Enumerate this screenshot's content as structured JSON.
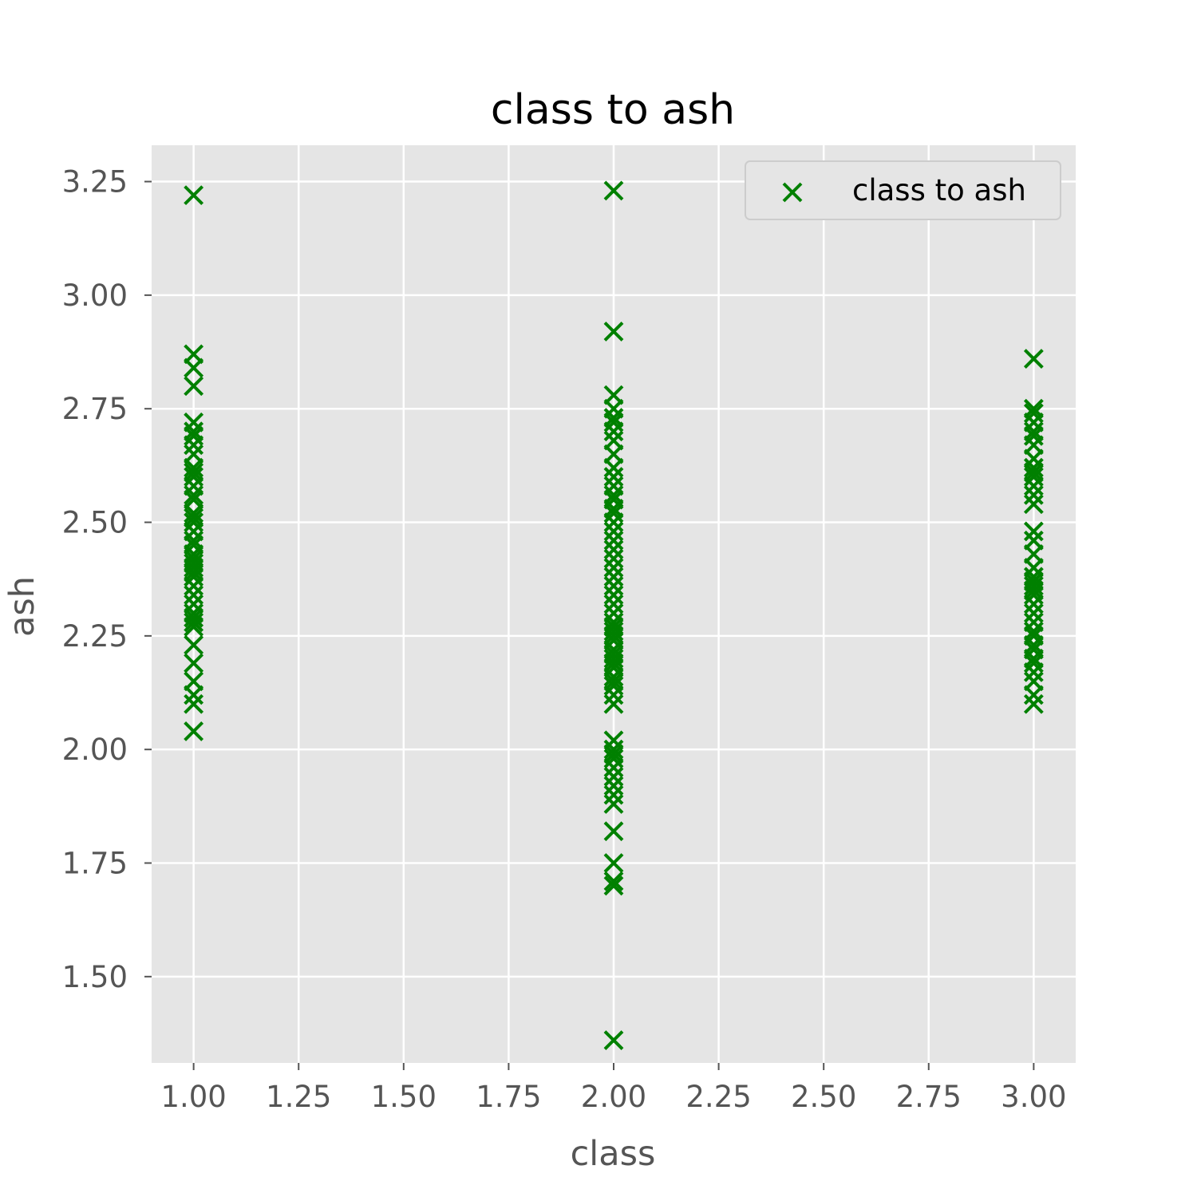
{
  "chart_data": {
    "type": "scatter",
    "title": "class to ash",
    "xlabel": "class",
    "ylabel": "ash",
    "xlim": [
      0.9,
      3.1
    ],
    "ylim": [
      1.31,
      3.33
    ],
    "xticks": [
      {
        "value": 1.0,
        "label": "1.00"
      },
      {
        "value": 1.25,
        "label": "1.25"
      },
      {
        "value": 1.5,
        "label": "1.50"
      },
      {
        "value": 1.75,
        "label": "1.75"
      },
      {
        "value": 2.0,
        "label": "2.00"
      },
      {
        "value": 2.25,
        "label": "2.25"
      },
      {
        "value": 2.5,
        "label": "2.50"
      },
      {
        "value": 2.75,
        "label": "2.75"
      },
      {
        "value": 3.0,
        "label": "3.00"
      }
    ],
    "yticks": [
      {
        "value": 1.5,
        "label": "1.50"
      },
      {
        "value": 1.75,
        "label": "1.75"
      },
      {
        "value": 2.0,
        "label": "2.00"
      },
      {
        "value": 2.25,
        "label": "2.25"
      },
      {
        "value": 2.5,
        "label": "2.50"
      },
      {
        "value": 2.75,
        "label": "2.75"
      },
      {
        "value": 3.0,
        "label": "3.00"
      },
      {
        "value": 3.25,
        "label": "3.25"
      }
    ],
    "grid": true,
    "legend_position": "top-right",
    "colors": {
      "marker": "#008000",
      "plot_background": "#e5e5e5",
      "grid": "#ffffff",
      "tick_text": "#555555",
      "legend_border": "#cccccc"
    },
    "marker": "x",
    "series": [
      {
        "name": "class to ash",
        "points": [
          [
            1,
            3.22
          ],
          [
            1,
            2.87
          ],
          [
            1,
            2.84
          ],
          [
            1,
            2.8
          ],
          [
            1,
            2.72
          ],
          [
            1,
            2.7
          ],
          [
            1,
            2.69
          ],
          [
            1,
            2.67
          ],
          [
            1,
            2.65
          ],
          [
            1,
            2.62
          ],
          [
            1,
            2.61
          ],
          [
            1,
            2.6
          ],
          [
            1,
            2.58
          ],
          [
            1,
            2.56
          ],
          [
            1,
            2.55
          ],
          [
            1,
            2.52
          ],
          [
            1,
            2.51
          ],
          [
            1,
            2.5
          ],
          [
            1,
            2.48
          ],
          [
            1,
            2.46
          ],
          [
            1,
            2.45
          ],
          [
            1,
            2.43
          ],
          [
            1,
            2.42
          ],
          [
            1,
            2.41
          ],
          [
            1,
            2.4
          ],
          [
            1,
            2.39
          ],
          [
            1,
            2.38
          ],
          [
            1,
            2.36
          ],
          [
            1,
            2.34
          ],
          [
            1,
            2.32
          ],
          [
            1,
            2.3
          ],
          [
            1,
            2.29
          ],
          [
            1,
            2.28
          ],
          [
            1,
            2.27
          ],
          [
            1,
            2.23
          ],
          [
            1,
            2.19
          ],
          [
            1,
            2.15
          ],
          [
            1,
            2.12
          ],
          [
            1,
            2.1
          ],
          [
            1,
            2.04
          ],
          [
            2,
            3.23
          ],
          [
            2,
            2.92
          ],
          [
            2,
            2.78
          ],
          [
            2,
            2.75
          ],
          [
            2,
            2.73
          ],
          [
            2,
            2.72
          ],
          [
            2,
            2.7
          ],
          [
            2,
            2.68
          ],
          [
            2,
            2.65
          ],
          [
            2,
            2.62
          ],
          [
            2,
            2.6
          ],
          [
            2,
            2.58
          ],
          [
            2,
            2.56
          ],
          [
            2,
            2.55
          ],
          [
            2,
            2.53
          ],
          [
            2,
            2.52
          ],
          [
            2,
            2.5
          ],
          [
            2,
            2.48
          ],
          [
            2,
            2.46
          ],
          [
            2,
            2.44
          ],
          [
            2,
            2.42
          ],
          [
            2,
            2.4
          ],
          [
            2,
            2.38
          ],
          [
            2,
            2.36
          ],
          [
            2,
            2.34
          ],
          [
            2,
            2.32
          ],
          [
            2,
            2.3
          ],
          [
            2,
            2.28
          ],
          [
            2,
            2.27
          ],
          [
            2,
            2.26
          ],
          [
            2,
            2.25
          ],
          [
            2,
            2.24
          ],
          [
            2,
            2.22
          ],
          [
            2,
            2.21
          ],
          [
            2,
            2.2
          ],
          [
            2,
            2.19
          ],
          [
            2,
            2.18
          ],
          [
            2,
            2.16
          ],
          [
            2,
            2.15
          ],
          [
            2,
            2.14
          ],
          [
            2,
            2.12
          ],
          [
            2,
            2.1
          ],
          [
            2,
            2.02
          ],
          [
            2,
            2.0
          ],
          [
            2,
            1.99
          ],
          [
            2,
            1.98
          ],
          [
            2,
            1.96
          ],
          [
            2,
            1.94
          ],
          [
            2,
            1.92
          ],
          [
            2,
            1.9
          ],
          [
            2,
            1.88
          ],
          [
            2,
            1.82
          ],
          [
            2,
            1.75
          ],
          [
            2,
            1.71
          ],
          [
            2,
            1.7
          ],
          [
            2,
            1.36
          ],
          [
            3,
            2.86
          ],
          [
            3,
            2.75
          ],
          [
            3,
            2.74
          ],
          [
            3,
            2.72
          ],
          [
            3,
            2.7
          ],
          [
            3,
            2.69
          ],
          [
            3,
            2.67
          ],
          [
            3,
            2.64
          ],
          [
            3,
            2.62
          ],
          [
            3,
            2.61
          ],
          [
            3,
            2.6
          ],
          [
            3,
            2.58
          ],
          [
            3,
            2.56
          ],
          [
            3,
            2.54
          ],
          [
            3,
            2.48
          ],
          [
            3,
            2.46
          ],
          [
            3,
            2.43
          ],
          [
            3,
            2.4
          ],
          [
            3,
            2.38
          ],
          [
            3,
            2.37
          ],
          [
            3,
            2.36
          ],
          [
            3,
            2.35
          ],
          [
            3,
            2.34
          ],
          [
            3,
            2.32
          ],
          [
            3,
            2.3
          ],
          [
            3,
            2.28
          ],
          [
            3,
            2.26
          ],
          [
            3,
            2.25
          ],
          [
            3,
            2.23
          ],
          [
            3,
            2.22
          ],
          [
            3,
            2.2
          ],
          [
            3,
            2.19
          ],
          [
            3,
            2.17
          ],
          [
            3,
            2.15
          ],
          [
            3,
            2.12
          ],
          [
            3,
            2.1
          ]
        ]
      }
    ]
  }
}
